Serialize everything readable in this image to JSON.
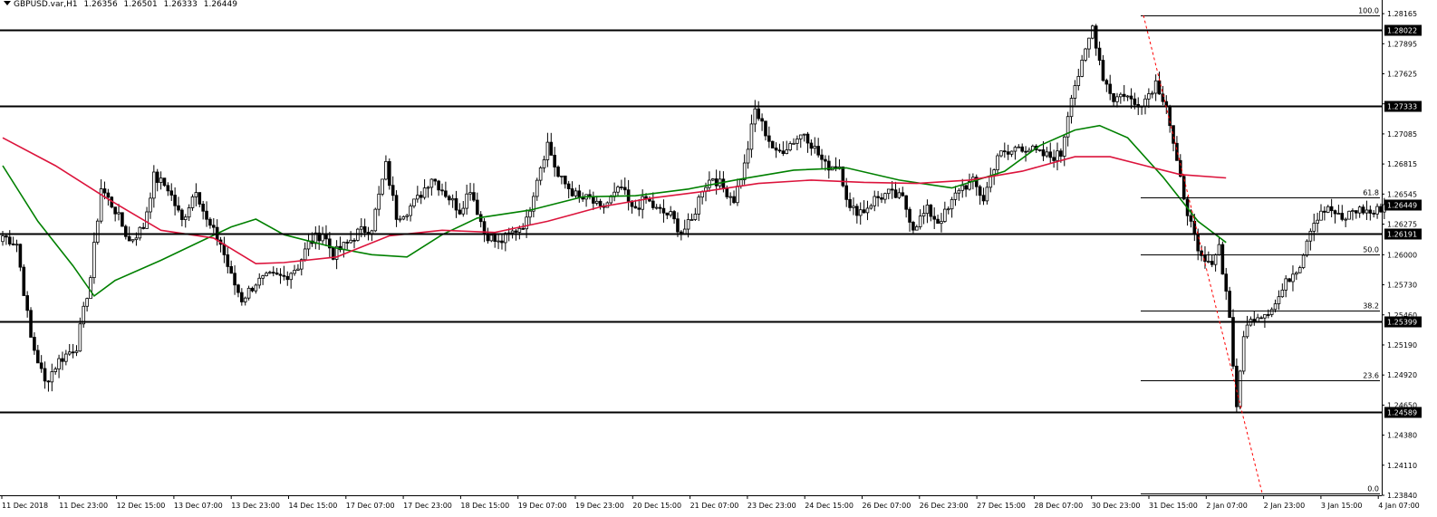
{
  "header": {
    "symbol": "GBPUSD.var,H1",
    "open": "1.26356",
    "high": "1.26501",
    "low": "1.26333",
    "close": "1.26449"
  },
  "colors": {
    "background": "#ffffff",
    "grid_axis": "#000000",
    "ma_fast": "#008000",
    "ma_slow": "#dc143c",
    "fib_trend": "#ff0000",
    "candle_bull": "#ffffff",
    "candle_bear": "#000000"
  },
  "chart_data": {
    "type": "candlestick",
    "y_axis": {
      "min": 1.2384,
      "max": 1.2819,
      "tick_labels": [
        "1.28165",
        "1.27895",
        "1.27625",
        "1.27355",
        "1.27085",
        "1.26815",
        "1.26545",
        "1.26275",
        "1.26000",
        "1.25730",
        "1.25460",
        "1.25190",
        "1.24920",
        "1.24650",
        "1.24380",
        "1.24110",
        "1.23840"
      ]
    },
    "x_axis": {
      "tick_labels": [
        "11 Dec 2018",
        "11 Dec 23:00",
        "12 Dec 15:00",
        "13 Dec 07:00",
        "13 Dec 23:00",
        "14 Dec 15:00",
        "17 Dec 07:00",
        "17 Dec 23:00",
        "18 Dec 15:00",
        "19 Dec 07:00",
        "19 Dec 23:00",
        "20 Dec 15:00",
        "21 Dec 07:00",
        "23 Dec 23:00",
        "24 Dec 15:00",
        "26 Dec 07:00",
        "26 Dec 23:00",
        "27 Dec 15:00",
        "28 Dec 07:00",
        "30 Dec 23:00",
        "31 Dec 15:00",
        "2 Jan 07:00",
        "2 Jan 23:00",
        "3 Jan 15:00",
        "4 Jan 07:00"
      ]
    },
    "horizontal_levels": [
      {
        "price": 1.28022,
        "label": "1.28022"
      },
      {
        "price": 1.27333,
        "label": "1.27333"
      },
      {
        "price": 1.26191,
        "label": "1.26191"
      },
      {
        "price": 1.25399,
        "label": "1.25399"
      },
      {
        "price": 1.24589,
        "label": "1.24589"
      }
    ],
    "current_price": {
      "price": 1.26449,
      "label": "1.26449"
    },
    "fibonacci": {
      "high": 1.2815,
      "low": 1.2386,
      "start_time_label": "31 Dec 15:00",
      "end_time_label": "2 Jan 23:00",
      "levels": [
        {
          "ratio": "100.0",
          "price": 1.2815
        },
        {
          "ratio": "61.8",
          "price": 1.26511
        },
        {
          "ratio": "50.0",
          "price": 1.26005
        },
        {
          "ratio": "38.2",
          "price": 1.25499
        },
        {
          "ratio": "23.6",
          "price": 1.24872
        },
        {
          "ratio": "0.0",
          "price": 1.2386
        }
      ]
    },
    "series": [
      {
        "kind": "moving_average_fast",
        "color": "#008000",
        "points": [
          {
            "bar": 0,
            "value": 1.268
          },
          {
            "bar": 10,
            "value": 1.263
          },
          {
            "bar": 20,
            "value": 1.259
          },
          {
            "bar": 26,
            "value": 1.2563
          },
          {
            "bar": 32,
            "value": 1.2577
          },
          {
            "bar": 45,
            "value": 1.2595
          },
          {
            "bar": 55,
            "value": 1.261
          },
          {
            "bar": 65,
            "value": 1.2625
          },
          {
            "bar": 72,
            "value": 1.2632
          },
          {
            "bar": 80,
            "value": 1.2618
          },
          {
            "bar": 95,
            "value": 1.2606
          },
          {
            "bar": 105,
            "value": 1.26
          },
          {
            "bar": 115,
            "value": 1.2598
          },
          {
            "bar": 125,
            "value": 1.2618
          },
          {
            "bar": 135,
            "value": 1.2633
          },
          {
            "bar": 150,
            "value": 1.264
          },
          {
            "bar": 165,
            "value": 1.2652
          },
          {
            "bar": 180,
            "value": 1.2653
          },
          {
            "bar": 195,
            "value": 1.2659
          },
          {
            "bar": 210,
            "value": 1.2668
          },
          {
            "bar": 225,
            "value": 1.2676
          },
          {
            "bar": 240,
            "value": 1.2678
          },
          {
            "bar": 255,
            "value": 1.2667
          },
          {
            "bar": 270,
            "value": 1.266
          },
          {
            "bar": 285,
            "value": 1.2675
          },
          {
            "bar": 295,
            "value": 1.2698
          },
          {
            "bar": 305,
            "value": 1.2712
          },
          {
            "bar": 312,
            "value": 1.2716
          },
          {
            "bar": 320,
            "value": 1.2705
          },
          {
            "bar": 330,
            "value": 1.267
          },
          {
            "bar": 340,
            "value": 1.263
          },
          {
            "bar": 348,
            "value": 1.2611
          }
        ]
      },
      {
        "kind": "moving_average_slow",
        "color": "#dc143c",
        "points": [
          {
            "bar": 0,
            "value": 1.2705
          },
          {
            "bar": 15,
            "value": 1.268
          },
          {
            "bar": 30,
            "value": 1.265
          },
          {
            "bar": 45,
            "value": 1.2622
          },
          {
            "bar": 60,
            "value": 1.2615
          },
          {
            "bar": 72,
            "value": 1.2592
          },
          {
            "bar": 80,
            "value": 1.2593
          },
          {
            "bar": 95,
            "value": 1.2598
          },
          {
            "bar": 110,
            "value": 1.2617
          },
          {
            "bar": 125,
            "value": 1.2622
          },
          {
            "bar": 140,
            "value": 1.262
          },
          {
            "bar": 155,
            "value": 1.263
          },
          {
            "bar": 170,
            "value": 1.2643
          },
          {
            "bar": 185,
            "value": 1.2651
          },
          {
            "bar": 200,
            "value": 1.2657
          },
          {
            "bar": 215,
            "value": 1.2664
          },
          {
            "bar": 230,
            "value": 1.2667
          },
          {
            "bar": 245,
            "value": 1.2665
          },
          {
            "bar": 260,
            "value": 1.2664
          },
          {
            "bar": 275,
            "value": 1.2667
          },
          {
            "bar": 290,
            "value": 1.2675
          },
          {
            "bar": 305,
            "value": 1.2688
          },
          {
            "bar": 315,
            "value": 1.2688
          },
          {
            "bar": 325,
            "value": 1.268
          },
          {
            "bar": 335,
            "value": 1.2672
          },
          {
            "bar": 348,
            "value": 1.2669
          }
        ]
      }
    ],
    "candle_anchors": [
      {
        "bar": 0,
        "price": 1.2617
      },
      {
        "bar": 4,
        "price": 1.261
      },
      {
        "bar": 8,
        "price": 1.2525
      },
      {
        "bar": 12,
        "price": 1.2485
      },
      {
        "bar": 16,
        "price": 1.2505
      },
      {
        "bar": 21,
        "price": 1.2518
      },
      {
        "bar": 25,
        "price": 1.258
      },
      {
        "bar": 28,
        "price": 1.266
      },
      {
        "bar": 32,
        "price": 1.264
      },
      {
        "bar": 36,
        "price": 1.2612
      },
      {
        "bar": 40,
        "price": 1.2625
      },
      {
        "bar": 43,
        "price": 1.267
      },
      {
        "bar": 47,
        "price": 1.266
      },
      {
        "bar": 51,
        "price": 1.263
      },
      {
        "bar": 55,
        "price": 1.266
      },
      {
        "bar": 58,
        "price": 1.263
      },
      {
        "bar": 62,
        "price": 1.261
      },
      {
        "bar": 65,
        "price": 1.258
      },
      {
        "bar": 68,
        "price": 1.256
      },
      {
        "bar": 72,
        "price": 1.2575
      },
      {
        "bar": 76,
        "price": 1.258
      },
      {
        "bar": 80,
        "price": 1.258
      },
      {
        "bar": 84,
        "price": 1.259
      },
      {
        "bar": 87,
        "price": 1.261
      },
      {
        "bar": 91,
        "price": 1.262
      },
      {
        "bar": 94,
        "price": 1.26
      },
      {
        "bar": 98,
        "price": 1.261
      },
      {
        "bar": 101,
        "price": 1.262
      },
      {
        "bar": 105,
        "price": 1.2625
      },
      {
        "bar": 109,
        "price": 1.268
      },
      {
        "bar": 112,
        "price": 1.2635
      },
      {
        "bar": 115,
        "price": 1.264
      },
      {
        "bar": 118,
        "price": 1.265
      },
      {
        "bar": 122,
        "price": 1.267
      },
      {
        "bar": 126,
        "price": 1.2655
      },
      {
        "bar": 130,
        "price": 1.264
      },
      {
        "bar": 133,
        "price": 1.266
      },
      {
        "bar": 137,
        "price": 1.262
      },
      {
        "bar": 141,
        "price": 1.261
      },
      {
        "bar": 145,
        "price": 1.262
      },
      {
        "bar": 149,
        "price": 1.263
      },
      {
        "bar": 152,
        "price": 1.267
      },
      {
        "bar": 155,
        "price": 1.27
      },
      {
        "bar": 158,
        "price": 1.267
      },
      {
        "bar": 161,
        "price": 1.266
      },
      {
        "bar": 164,
        "price": 1.265
      },
      {
        "bar": 167,
        "price": 1.265
      },
      {
        "bar": 170,
        "price": 1.264
      },
      {
        "bar": 173,
        "price": 1.265
      },
      {
        "bar": 176,
        "price": 1.266
      },
      {
        "bar": 179,
        "price": 1.264
      },
      {
        "bar": 183,
        "price": 1.265
      },
      {
        "bar": 186,
        "price": 1.264
      },
      {
        "bar": 190,
        "price": 1.2635
      },
      {
        "bar": 193,
        "price": 1.262
      },
      {
        "bar": 196,
        "price": 1.263
      },
      {
        "bar": 199,
        "price": 1.266
      },
      {
        "bar": 202,
        "price": 1.267
      },
      {
        "bar": 205,
        "price": 1.266
      },
      {
        "bar": 208,
        "price": 1.265
      },
      {
        "bar": 211,
        "price": 1.268
      },
      {
        "bar": 214,
        "price": 1.273
      },
      {
        "bar": 217,
        "price": 1.271
      },
      {
        "bar": 220,
        "price": 1.269
      },
      {
        "bar": 224,
        "price": 1.27
      },
      {
        "bar": 228,
        "price": 1.271
      },
      {
        "bar": 231,
        "price": 1.2695
      },
      {
        "bar": 234,
        "price": 1.268
      },
      {
        "bar": 238,
        "price": 1.268
      },
      {
        "bar": 241,
        "price": 1.264
      },
      {
        "bar": 245,
        "price": 1.264
      },
      {
        "bar": 248,
        "price": 1.265
      },
      {
        "bar": 252,
        "price": 1.2655
      },
      {
        "bar": 256,
        "price": 1.265
      },
      {
        "bar": 259,
        "price": 1.2625
      },
      {
        "bar": 263,
        "price": 1.264
      },
      {
        "bar": 266,
        "price": 1.263
      },
      {
        "bar": 269,
        "price": 1.264
      },
      {
        "bar": 272,
        "price": 1.266
      },
      {
        "bar": 276,
        "price": 1.2665
      },
      {
        "bar": 279,
        "price": 1.265
      },
      {
        "bar": 283,
        "price": 1.269
      },
      {
        "bar": 286,
        "price": 1.269
      },
      {
        "bar": 289,
        "price": 1.2698
      },
      {
        "bar": 292,
        "price": 1.2695
      },
      {
        "bar": 295,
        "price": 1.269
      },
      {
        "bar": 298,
        "price": 1.2688
      },
      {
        "bar": 301,
        "price": 1.269
      },
      {
        "bar": 304,
        "price": 1.2745
      },
      {
        "bar": 307,
        "price": 1.277
      },
      {
        "bar": 310,
        "price": 1.2805
      },
      {
        "bar": 313,
        "price": 1.276
      },
      {
        "bar": 316,
        "price": 1.274
      },
      {
        "bar": 319,
        "price": 1.2745
      },
      {
        "bar": 322,
        "price": 1.2735
      },
      {
        "bar": 325,
        "price": 1.274
      },
      {
        "bar": 328,
        "price": 1.2755
      },
      {
        "bar": 331,
        "price": 1.2735
      },
      {
        "bar": 334,
        "price": 1.268
      },
      {
        "bar": 337,
        "price": 1.264
      },
      {
        "bar": 340,
        "price": 1.26
      },
      {
        "bar": 343,
        "price": 1.259
      },
      {
        "bar": 346,
        "price": 1.2608
      },
      {
        "bar": 349,
        "price": 1.2545
      },
      {
        "bar": 351,
        "price": 1.2459
      },
      {
        "bar": 353,
        "price": 1.253
      },
      {
        "bar": 356,
        "price": 1.2545
      },
      {
        "bar": 359,
        "price": 1.2548
      },
      {
        "bar": 362,
        "price": 1.2556
      },
      {
        "bar": 366,
        "price": 1.258
      },
      {
        "bar": 369,
        "price": 1.2592
      },
      {
        "bar": 372,
        "price": 1.2625
      },
      {
        "bar": 375,
        "price": 1.264
      },
      {
        "bar": 378,
        "price": 1.264
      },
      {
        "bar": 381,
        "price": 1.263
      },
      {
        "bar": 384,
        "price": 1.264
      },
      {
        "bar": 387,
        "price": 1.264
      },
      {
        "bar": 390,
        "price": 1.2637
      },
      {
        "bar": 393,
        "price": 1.2645
      }
    ]
  }
}
